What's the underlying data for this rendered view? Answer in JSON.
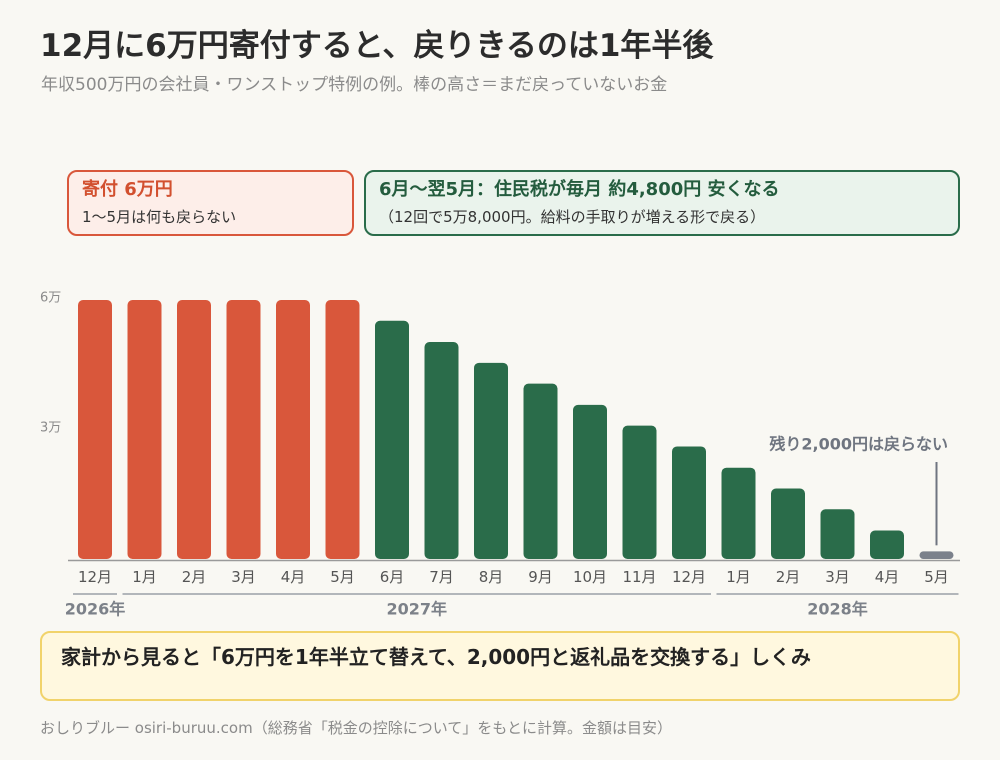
{
  "chart_data": {
    "type": "bar",
    "title": "12月に6万円寄付すると、戻りきるのは1年半後",
    "subtitle": "年収500万円の会社員・ワンストップ特例の例。棒の高さ＝まだ戻っていないお金",
    "ylim": [
      0,
      60000
    ],
    "yticks": [
      {
        "value": 60000,
        "label": "6万"
      },
      {
        "value": 30000,
        "label": "3万"
      }
    ],
    "categories": [
      "12月",
      "1月",
      "2月",
      "3月",
      "4月",
      "5月",
      "6月",
      "7月",
      "8月",
      "9月",
      "10月",
      "11月",
      "12月",
      "1月",
      "2月",
      "3月",
      "4月",
      "5月"
    ],
    "year_groups": [
      {
        "label": "2026年",
        "first": 0,
        "last": 0
      },
      {
        "label": "2027年",
        "first": 1,
        "last": 12
      },
      {
        "label": "2028年",
        "first": 13,
        "last": 17
      }
    ],
    "values": [
      60000,
      60000,
      60000,
      60000,
      60000,
      60000,
      55200,
      50300,
      45500,
      40700,
      35800,
      31000,
      26200,
      21300,
      16500,
      11700,
      6800,
      2000
    ],
    "bar_colors": [
      "#d9573b",
      "#d9573b",
      "#d9573b",
      "#d9573b",
      "#d9573b",
      "#d9573b",
      "#2a6c4a",
      "#2a6c4a",
      "#2a6c4a",
      "#2a6c4a",
      "#2a6c4a",
      "#2a6c4a",
      "#2a6c4a",
      "#2a6c4a",
      "#2a6c4a",
      "#2a6c4a",
      "#2a6c4a",
      "#7b818b"
    ],
    "annotation": {
      "text": "残り2,000円は戻らない",
      "category_index": 17,
      "color": "#6f7580"
    },
    "grid": false
  },
  "callouts": {
    "donation": {
      "title": "寄付 6万円",
      "note": "1〜5月は何も戻らない"
    },
    "refund": {
      "title": "6月〜翌5月：住民税が毎月 約4,800円 安くなる",
      "note": "（12回で5万8,000円。給料の手取りが増える形で戻る）"
    }
  },
  "summary": {
    "text": "家計から見ると「6万円を1年半立て替えて、2,000円と返礼品を交換する」しくみ"
  },
  "footer": {
    "text": "おしりブルー osiri-buruu.com（総務省「税金の控除について」をもとに計算。金額は目安）"
  }
}
